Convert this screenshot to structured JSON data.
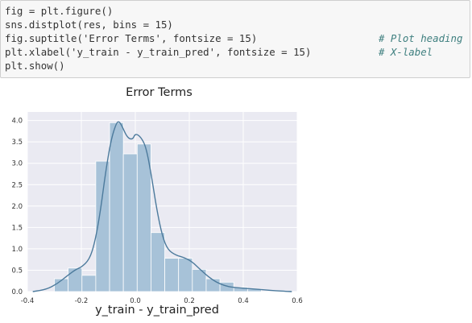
{
  "code_cell": {
    "lines": [
      "fig = plt.figure()",
      "sns.distplot(res, bins = 15)",
      "fig.suptitle('Error Terms', fontsize = 15)",
      "plt.xlabel('y_train - y_train_pred', fontsize = 15)",
      "plt.show()"
    ],
    "comments": [
      "# Plot heading",
      "# X-label"
    ]
  },
  "colors": {
    "plot_bg": "#eaeaf2",
    "bar_fill": "#a7c2d8",
    "kde_line": "#4c7a9c",
    "grid": "#ffffff",
    "comment": "#408080"
  },
  "chart_data": {
    "type": "bar",
    "title": "Error Terms",
    "xlabel": "y_train - y_train_pred",
    "ylabel": "",
    "xlim": [
      -0.4,
      0.6
    ],
    "ylim": [
      0,
      4.2
    ],
    "x_ticks": [
      "-0.4",
      "-0.2",
      "0.0",
      "0.2",
      "0.4",
      "0.6"
    ],
    "y_ticks": [
      "0.0",
      "0.5",
      "1.0",
      "1.5",
      "2.0",
      "2.5",
      "3.0",
      "3.5",
      "4.0"
    ],
    "bins": [
      {
        "x0": -0.3,
        "x1": -0.2489,
        "h": 0.3
      },
      {
        "x0": -0.2489,
        "x1": -0.1977,
        "h": 0.55
      },
      {
        "x0": -0.1977,
        "x1": -0.1466,
        "h": 0.38
      },
      {
        "x0": -0.1466,
        "x1": -0.0954,
        "h": 3.05
      },
      {
        "x0": -0.0954,
        "x1": -0.0443,
        "h": 3.95
      },
      {
        "x0": -0.0443,
        "x1": 0.0069,
        "h": 3.22
      },
      {
        "x0": 0.0069,
        "x1": 0.058,
        "h": 3.45
      },
      {
        "x0": 0.058,
        "x1": 0.1091,
        "h": 1.38
      },
      {
        "x0": 0.1091,
        "x1": 0.1603,
        "h": 0.78
      },
      {
        "x0": 0.1603,
        "x1": 0.2114,
        "h": 0.78
      },
      {
        "x0": 0.2114,
        "x1": 0.2626,
        "h": 0.52
      },
      {
        "x0": 0.2626,
        "x1": 0.3137,
        "h": 0.3
      },
      {
        "x0": 0.3137,
        "x1": 0.3649,
        "h": 0.22
      },
      {
        "x0": 0.3649,
        "x1": 0.416,
        "h": 0.1
      },
      {
        "x0": 0.416,
        "x1": 0.4671,
        "h": 0.06
      }
    ],
    "kde": {
      "x": [
        -0.38,
        -0.33,
        -0.29,
        -0.25,
        -0.22,
        -0.2,
        -0.17,
        -0.15,
        -0.13,
        -0.11,
        -0.09,
        -0.07,
        -0.06,
        -0.05,
        -0.03,
        -0.01,
        0.0,
        0.02,
        0.04,
        0.06,
        0.08,
        0.1,
        0.12,
        0.15,
        0.18,
        0.21,
        0.24,
        0.27,
        0.3,
        0.33,
        0.36,
        0.4,
        0.44,
        0.48,
        0.52,
        0.56,
        0.58
      ],
      "y": [
        0.0,
        0.05,
        0.18,
        0.38,
        0.52,
        0.57,
        0.75,
        1.15,
        1.85,
        2.8,
        3.55,
        3.95,
        3.98,
        3.88,
        3.6,
        3.55,
        3.7,
        3.62,
        3.38,
        2.7,
        1.9,
        1.3,
        0.98,
        0.85,
        0.8,
        0.7,
        0.52,
        0.35,
        0.22,
        0.14,
        0.1,
        0.08,
        0.06,
        0.04,
        0.02,
        0.005,
        0.0
      ]
    }
  }
}
